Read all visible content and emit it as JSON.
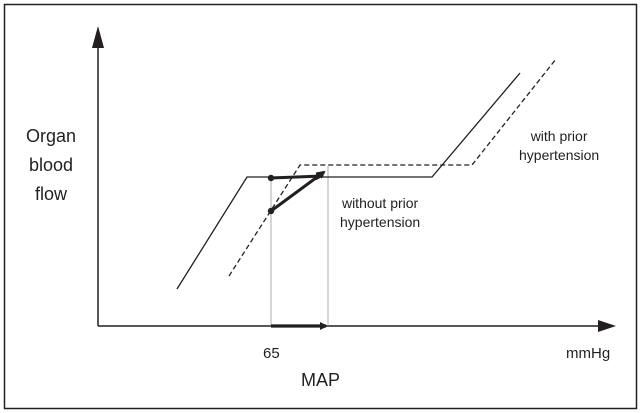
{
  "y_axis_label": [
    "Organ",
    "blood",
    "flow"
  ],
  "x_axis_label": "MAP",
  "x_unit": "mmHg",
  "x_tick": "65",
  "annotations": {
    "with_prior": [
      "with prior",
      "hypertension"
    ],
    "without_prior": [
      "without prior",
      "hypertension"
    ]
  },
  "curves": [
    {
      "name": "without prior hypertension",
      "style": "solid"
    },
    {
      "name": "with prior hypertension",
      "style": "dashed"
    }
  ],
  "colors": {
    "ink": "#231f20",
    "guide": "#9a9a9a",
    "border": "#231f20"
  }
}
